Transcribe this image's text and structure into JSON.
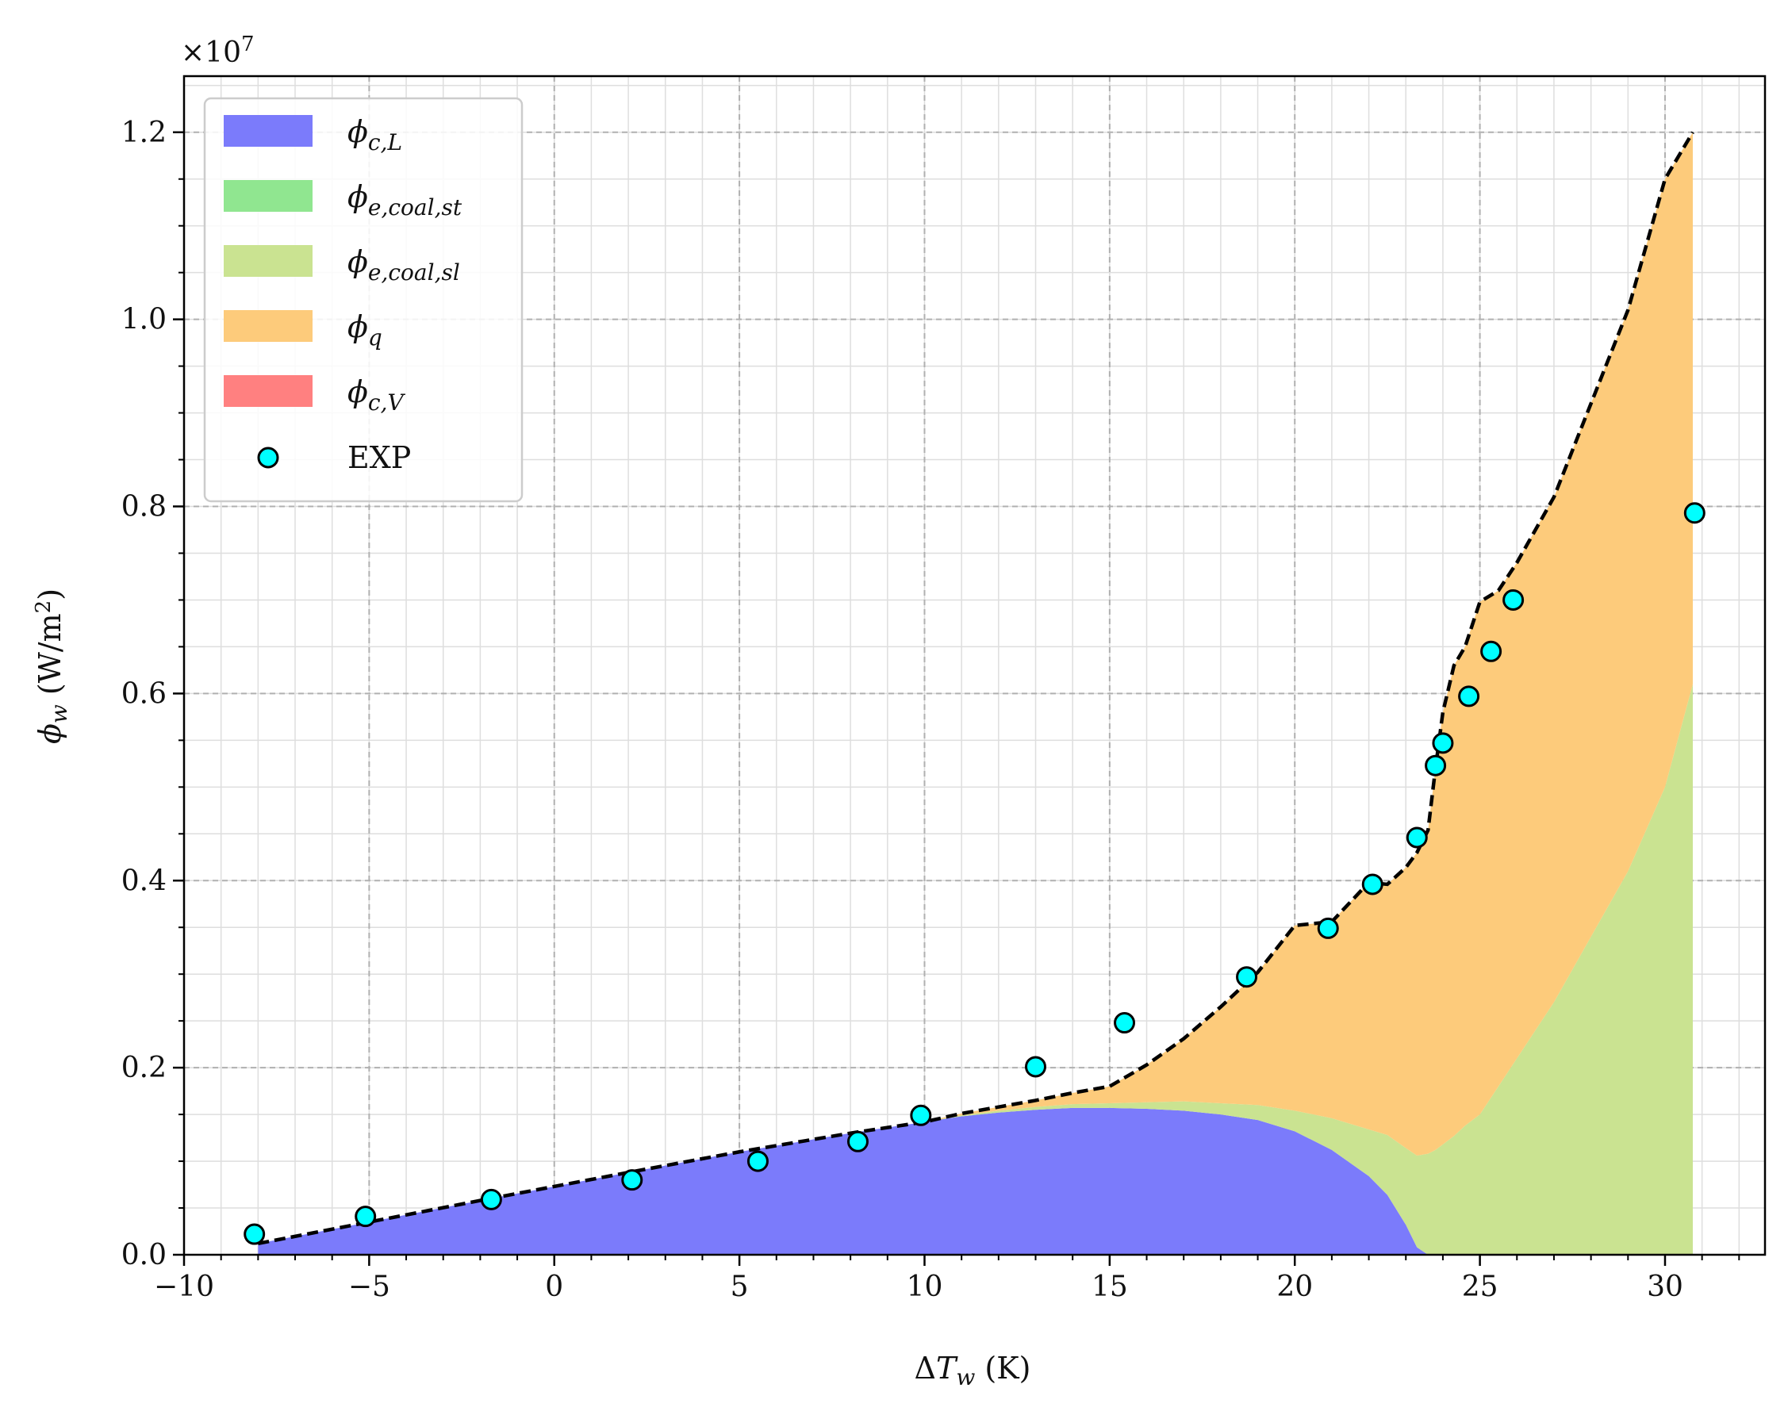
{
  "chart_data": {
    "type": "area",
    "xlabel": "ΔT_w (K)",
    "ylabel": "ϕ_w (W/m²)",
    "y_offset_text": "×10^7",
    "y_scale": 10000000,
    "xlim": [
      -10,
      32.7
    ],
    "ylim": [
      0,
      1.26
    ],
    "x_ticks": [
      -10,
      -5,
      0,
      5,
      10,
      15,
      20,
      25,
      30
    ],
    "x_tick_labels": [
      "−10",
      "−5",
      "0",
      "5",
      "10",
      "15",
      "20",
      "25",
      "30"
    ],
    "y_ticks": [
      0.0,
      0.2,
      0.4,
      0.6,
      0.8,
      1.0,
      1.2
    ],
    "y_tick_labels": [
      "0.0",
      "0.2",
      "0.4",
      "0.6",
      "0.8",
      "1.0",
      "1.2"
    ],
    "grid": true,
    "legend_position": "top-left",
    "colors": {
      "phi_c_L": "#7b7bfb",
      "phi_e_coal_st": "#90e690",
      "phi_e_coal_sl": "#cae391",
      "phi_q": "#fdcb7b",
      "phi_c_V": "#ff8080",
      "exp_fill": "#00ffff",
      "total_line": "#000000",
      "grid_major": "#b0b0b0",
      "grid_minor": "#dedede"
    },
    "legend": [
      {
        "key": "phi_c_L",
        "main": "ϕ",
        "sub": "c,L"
      },
      {
        "key": "phi_e_coal_st",
        "main": "ϕ",
        "sub": "e,coal,st"
      },
      {
        "key": "phi_e_coal_sl",
        "main": "ϕ",
        "sub": "e,coal,sl"
      },
      {
        "key": "phi_q",
        "main": "ϕ",
        "sub": "q"
      },
      {
        "key": "phi_c_V",
        "main": "ϕ",
        "sub": "c,V"
      },
      {
        "key": "exp",
        "label": "EXP"
      }
    ],
    "x": [
      -8,
      -5,
      -2,
      2,
      5,
      8,
      10,
      11,
      12,
      13,
      14,
      15,
      16,
      17,
      18,
      19,
      20,
      21,
      22,
      22.5,
      23,
      23.3,
      23.6,
      23.8,
      24,
      24.3,
      24.6,
      25,
      25.5,
      26,
      27,
      28,
      29,
      30,
      30.75
    ],
    "series": [
      {
        "key": "phi_c_L",
        "values": [
          0.012,
          0.035,
          0.058,
          0.088,
          0.11,
          0.13,
          0.142,
          0.148,
          0.152,
          0.155,
          0.157,
          0.157,
          0.156,
          0.154,
          0.15,
          0.144,
          0.132,
          0.112,
          0.084,
          0.064,
          0.032,
          0.008,
          0.0,
          0.0,
          0.0,
          0.0,
          0.0,
          0.0,
          0.0,
          0.0,
          0.0,
          0.0,
          0.0,
          0.0,
          0.0
        ]
      },
      {
        "key": "phi_e_coal_st",
        "values": [
          0,
          0,
          0,
          0,
          0,
          0,
          0,
          0,
          0,
          0,
          0,
          0,
          0,
          0,
          0,
          0,
          0,
          0,
          0,
          0,
          0,
          0,
          0,
          0,
          0,
          0,
          0,
          0,
          0,
          0,
          0,
          0,
          0,
          0,
          0
        ]
      },
      {
        "key": "phi_e_coal_sl",
        "values": [
          0.0,
          0.0,
          0.0,
          0.0,
          0.0,
          0.0,
          0.0,
          0.001,
          0.002,
          0.003,
          0.004,
          0.005,
          0.007,
          0.01,
          0.012,
          0.016,
          0.022,
          0.034,
          0.05,
          0.064,
          0.082,
          0.098,
          0.108,
          0.112,
          0.118,
          0.127,
          0.138,
          0.15,
          0.18,
          0.21,
          0.27,
          0.34,
          0.41,
          0.5,
          0.61
        ]
      },
      {
        "key": "phi_q",
        "values": [
          0.0,
          0.0,
          0.0,
          0.0,
          0.0,
          0.0,
          0.0,
          0.002,
          0.004,
          0.007,
          0.012,
          0.018,
          0.04,
          0.067,
          0.103,
          0.142,
          0.198,
          0.21,
          0.264,
          0.268,
          0.3,
          0.324,
          0.346,
          0.408,
          0.462,
          0.503,
          0.512,
          0.548,
          0.53,
          0.53,
          0.54,
          0.57,
          0.6,
          0.65,
          0.59
        ]
      },
      {
        "key": "phi_c_V",
        "values": [
          0,
          0,
          0,
          0,
          0,
          0,
          0,
          0,
          0,
          0,
          0,
          0,
          0,
          0,
          0,
          0,
          0,
          0,
          0,
          0,
          0,
          0,
          0,
          0,
          0,
          0,
          0,
          0,
          0,
          0,
          0,
          0,
          0,
          0,
          0
        ]
      }
    ],
    "total_line": {
      "x": [
        -8,
        -5,
        -2,
        2,
        5,
        8,
        10,
        11,
        12,
        13,
        14,
        15,
        16,
        17,
        18,
        19,
        20,
        21,
        22,
        22.5,
        23,
        23.3,
        23.6,
        23.8,
        24,
        24.3,
        24.6,
        25,
        25.5,
        26,
        27,
        28,
        29,
        30,
        30.75
      ],
      "y": [
        0.012,
        0.035,
        0.058,
        0.088,
        0.11,
        0.13,
        0.142,
        0.151,
        0.158,
        0.165,
        0.173,
        0.18,
        0.203,
        0.231,
        0.265,
        0.302,
        0.352,
        0.356,
        0.398,
        0.396,
        0.414,
        0.43,
        0.454,
        0.52,
        0.58,
        0.63,
        0.65,
        0.698,
        0.71,
        0.74,
        0.81,
        0.91,
        1.01,
        1.15,
        1.2
      ]
    },
    "exp": {
      "x": [
        -8.1,
        -5.1,
        -1.7,
        2.1,
        5.5,
        8.2,
        9.9,
        13.0,
        15.4,
        18.7,
        20.9,
        22.1,
        23.3,
        23.8,
        24.0,
        24.7,
        25.3,
        25.9,
        30.8
      ],
      "y": [
        0.022,
        0.041,
        0.059,
        0.08,
        0.1,
        0.121,
        0.149,
        0.201,
        0.248,
        0.297,
        0.349,
        0.396,
        0.446,
        0.523,
        0.547,
        0.597,
        0.645,
        0.7,
        0.793
      ]
    }
  }
}
